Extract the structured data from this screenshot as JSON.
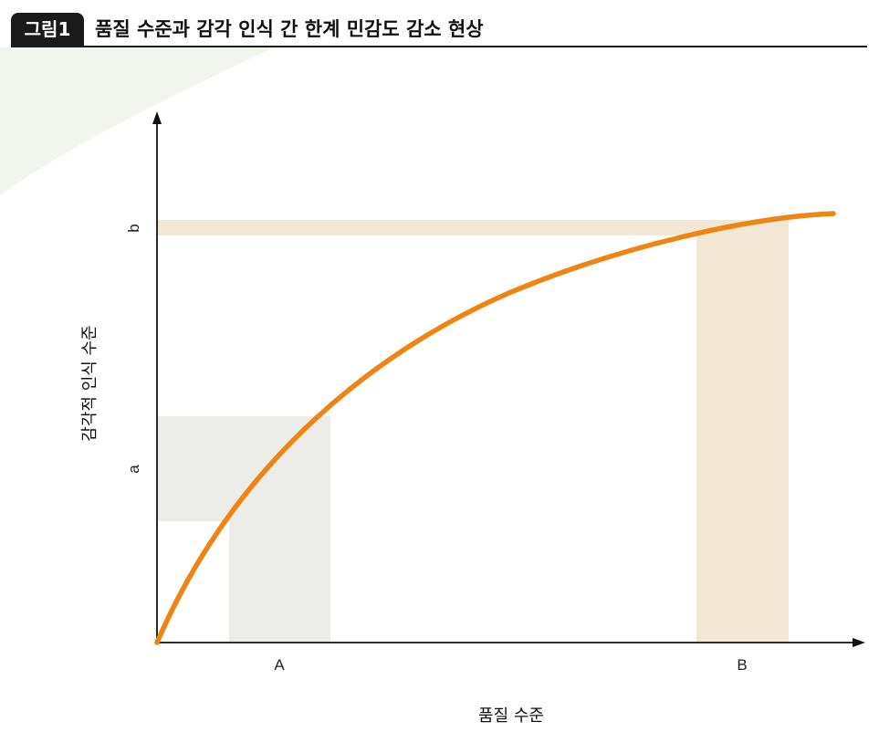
{
  "figure": {
    "badge": "그림1",
    "title": "품질 수준과 감각 인식 간 한계 민감도 감소 현상"
  },
  "colors": {
    "curve": "#ef8413",
    "shade_a": "#ecece8",
    "shade_b": "#f3e7d6",
    "axis": "#111111",
    "badge_bg": "#1a1a1a",
    "swoosh": "#f2f5ee"
  },
  "chart_data": {
    "type": "line",
    "xlabel": "품질 수준",
    "ylabel": "감각적 인식 수준",
    "x_markers": [
      "A",
      "B"
    ],
    "y_markers": [
      "a",
      "b"
    ],
    "curve": "concave increasing (diminishing sensitivity)",
    "highlight_x": [
      "A",
      "B"
    ],
    "highlight_y": [
      "a",
      "b"
    ],
    "grid": false,
    "axis_ticks_numeric": false
  }
}
